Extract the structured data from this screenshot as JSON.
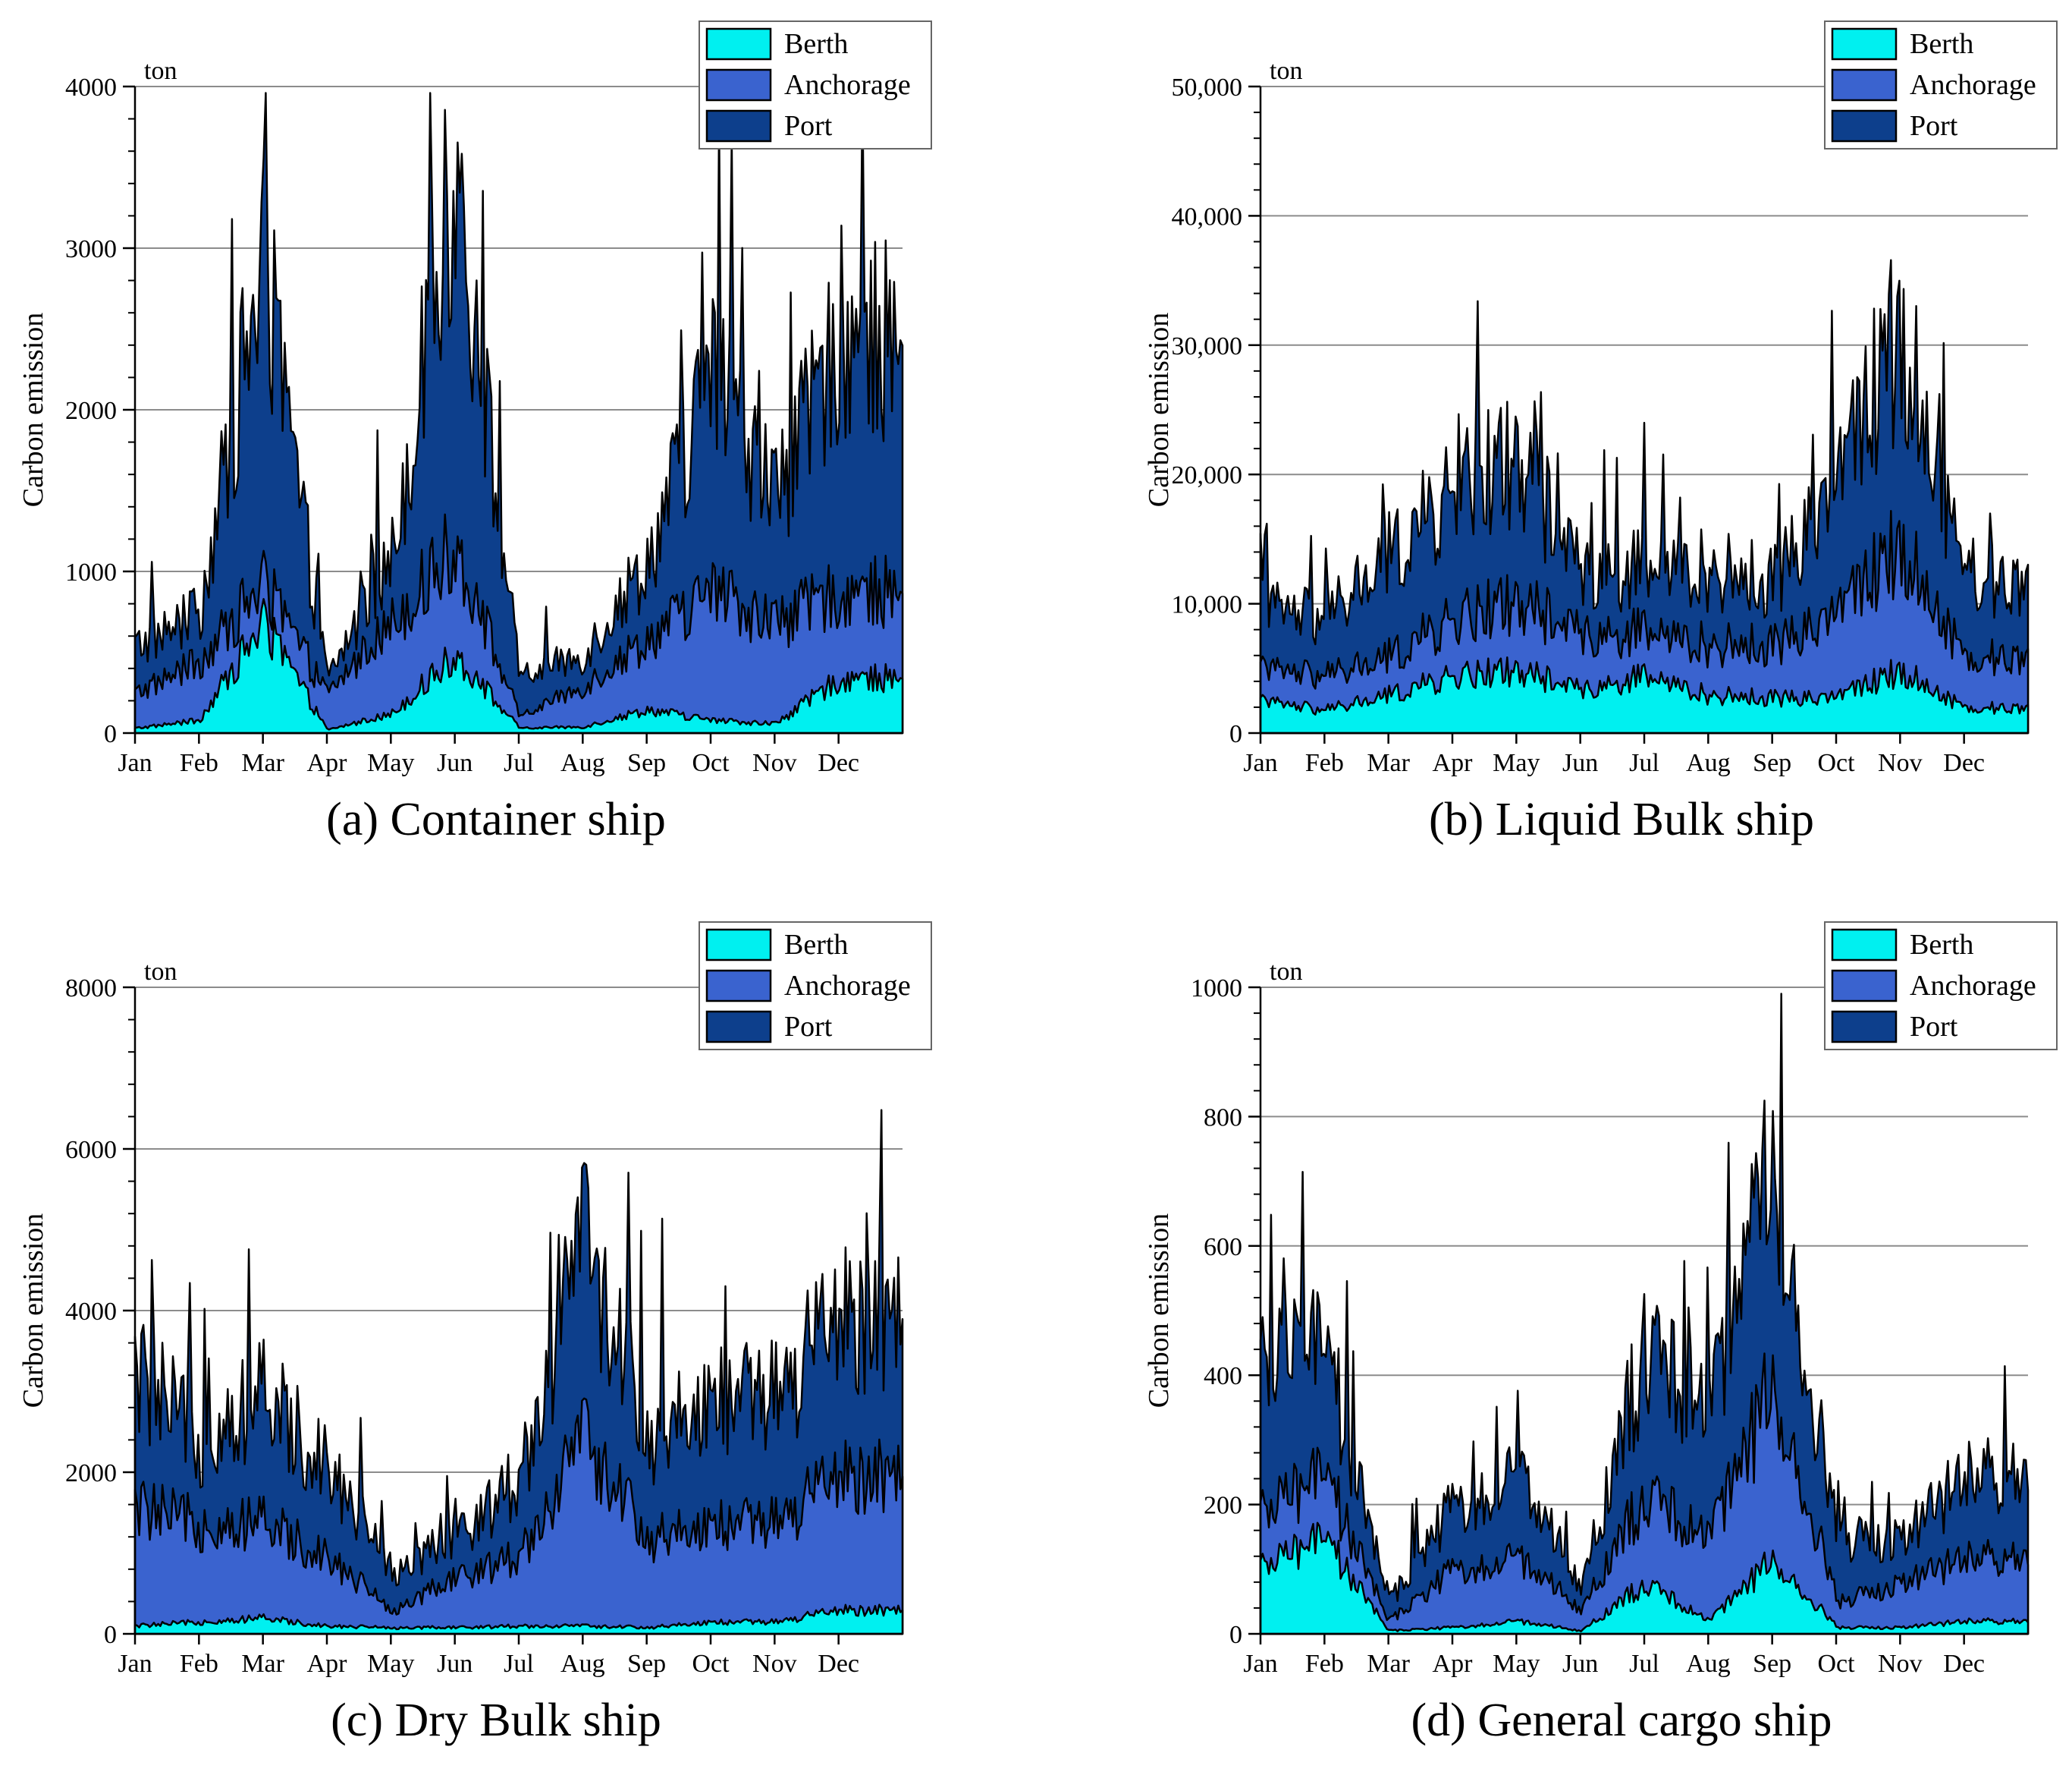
{
  "legend_colors": {
    "Berth": "#00F0F0",
    "Anchorage": "#3A63CF",
    "Port": "#0D3F8C"
  },
  "chart_data": [
    {
      "type": "area",
      "title": "(a) Container ship",
      "ylabel": "Carbon emission",
      "unit": "ton",
      "ylim": [
        0,
        4000
      ],
      "yticks": [
        0,
        1000,
        2000,
        3000,
        4000
      ],
      "ytick_labels": [
        "0",
        "1000",
        "2000",
        "3000",
        "4000"
      ],
      "x": [
        "Jan",
        "Feb",
        "Mar",
        "Apr",
        "May",
        "Jun",
        "Jul",
        "Aug",
        "Sep",
        "Oct",
        "Nov",
        "Dec"
      ],
      "grid": "horizontal",
      "legend_position": "top-right",
      "series": [
        {
          "name": "Berth",
          "values": [
            30,
            80,
            700,
            20,
            120,
            500,
            30,
            40,
            150,
            80,
            60,
            350
          ]
        },
        {
          "name": "Anchorage",
          "values": [
            250,
            450,
            950,
            250,
            700,
            1200,
            100,
            300,
            600,
            900,
            700,
            900
          ]
        },
        {
          "name": "Port",
          "values": [
            550,
            750,
            3000,
            350,
            1100,
            3600,
            350,
            500,
            1100,
            2300,
            1500,
            2500
          ]
        }
      ]
    },
    {
      "type": "area",
      "title": "(b) Liquid Bulk ship",
      "ylabel": "Carbon emission",
      "unit": "ton",
      "ylim": [
        0,
        50000
      ],
      "yticks": [
        0,
        10000,
        20000,
        30000,
        40000,
        50000
      ],
      "ytick_labels": [
        "0",
        "10,000",
        "20,000",
        "30,000",
        "40,000",
        "50,000"
      ],
      "x": [
        "Jan",
        "Feb",
        "Mar",
        "Apr",
        "May",
        "Jun",
        "Jul",
        "Aug",
        "Sep",
        "Oct",
        "Nov",
        "Dec"
      ],
      "grid": "horizontal",
      "legend_position": "top-right",
      "series": [
        {
          "name": "Berth",
          "values": [
            2500,
            1800,
            3000,
            4500,
            5000,
            3500,
            4500,
            3000,
            2800,
            3000,
            5000,
            2000
          ]
        },
        {
          "name": "Anchorage",
          "values": [
            5000,
            4500,
            6000,
            9000,
            10500,
            8000,
            8000,
            7000,
            7000,
            10000,
            15000,
            6000
          ]
        },
        {
          "name": "Port",
          "values": [
            10000,
            9000,
            14000,
            19000,
            22000,
            13000,
            13000,
            13000,
            12000,
            21000,
            32000,
            12000
          ]
        }
      ]
    },
    {
      "type": "area",
      "title": "(c) Dry Bulk ship",
      "ylabel": "Carbon emission",
      "unit": "ton",
      "ylim": [
        0,
        8000
      ],
      "yticks": [
        0,
        2000,
        4000,
        6000,
        8000
      ],
      "ytick_labels": [
        "0",
        "2000",
        "4000",
        "6000",
        "8000"
      ],
      "x": [
        "Jan",
        "Feb",
        "Mar",
        "Apr",
        "May",
        "Jun",
        "Jul",
        "Aug",
        "Sep",
        "Oct",
        "Nov",
        "Dec"
      ],
      "grid": "horizontal",
      "legend_position": "top-right",
      "series": [
        {
          "name": "Berth",
          "values": [
            100,
            150,
            200,
            100,
            80,
            80,
            100,
            100,
            80,
            150,
            150,
            300
          ]
        },
        {
          "name": "Anchorage",
          "values": [
            1600,
            1400,
            1400,
            1000,
            300,
            700,
            1000,
            2500,
            1200,
            1400,
            1400,
            2000
          ]
        },
        {
          "name": "Port",
          "values": [
            3300,
            2500,
            3000,
            2200,
            800,
            1200,
            2000,
            5000,
            2500,
            3000,
            3000,
            4000
          ]
        }
      ]
    },
    {
      "type": "area",
      "title": "(d) General cargo ship",
      "ylabel": "Carbon emission",
      "unit": "ton",
      "ylim": [
        0,
        1000
      ],
      "yticks": [
        0,
        200,
        400,
        600,
        800,
        1000
      ],
      "ytick_labels": [
        "0",
        "200",
        "400",
        "600",
        "800",
        "1000"
      ],
      "x": [
        "Jan",
        "Feb",
        "Mar",
        "Apr",
        "May",
        "Jun",
        "Jul",
        "Aug",
        "Sep",
        "Oct",
        "Nov",
        "Dec"
      ],
      "grid": "horizontal",
      "legend_position": "top-right",
      "series": [
        {
          "name": "Berth",
          "values": [
            100,
            150,
            5,
            10,
            20,
            5,
            80,
            20,
            120,
            10,
            10,
            20
          ]
        },
        {
          "name": "Anchorage",
          "values": [
            180,
            250,
            20,
            100,
            120,
            40,
            220,
            150,
            400,
            50,
            80,
            120
          ]
        },
        {
          "name": "Port",
          "values": [
            400,
            450,
            50,
            200,
            250,
            80,
            450,
            350,
            750,
            150,
            150,
            250
          ]
        }
      ]
    }
  ]
}
